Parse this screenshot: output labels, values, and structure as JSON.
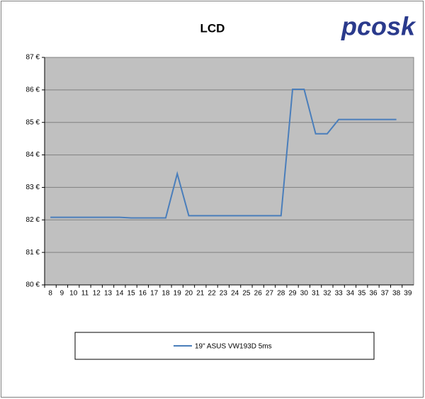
{
  "chart_data": {
    "type": "line",
    "title": "LCD",
    "logo": "pcosk",
    "categories": [
      8,
      9,
      10,
      11,
      12,
      13,
      14,
      15,
      16,
      17,
      18,
      19,
      20,
      21,
      22,
      23,
      24,
      25,
      26,
      27,
      28,
      29,
      30,
      31,
      32,
      33,
      34,
      35,
      36,
      37,
      38,
      39
    ],
    "series": [
      {
        "name": "19\" ASUS VW193D 5ms",
        "color": "#4a7ebb",
        "values": [
          82.08,
          82.08,
          82.08,
          82.08,
          82.08,
          82.08,
          82.08,
          82.06,
          82.06,
          82.06,
          82.06,
          83.42,
          82.13,
          82.13,
          82.13,
          82.13,
          82.13,
          82.13,
          82.13,
          82.13,
          82.13,
          86.02,
          86.02,
          84.65,
          84.65,
          85.09,
          85.09,
          85.09,
          85.09,
          85.09,
          85.09,
          null
        ]
      }
    ],
    "ylim": [
      80,
      87
    ],
    "yticks": [
      {
        "value": 80,
        "label": "80 €"
      },
      {
        "value": 81,
        "label": "81 €"
      },
      {
        "value": 82,
        "label": "82 €"
      },
      {
        "value": 83,
        "label": "83 €"
      },
      {
        "value": 84,
        "label": "84 €"
      },
      {
        "value": 85,
        "label": "85 €"
      },
      {
        "value": 86,
        "label": "86 €"
      },
      {
        "value": 87,
        "label": "87 €"
      }
    ],
    "grid": true
  }
}
